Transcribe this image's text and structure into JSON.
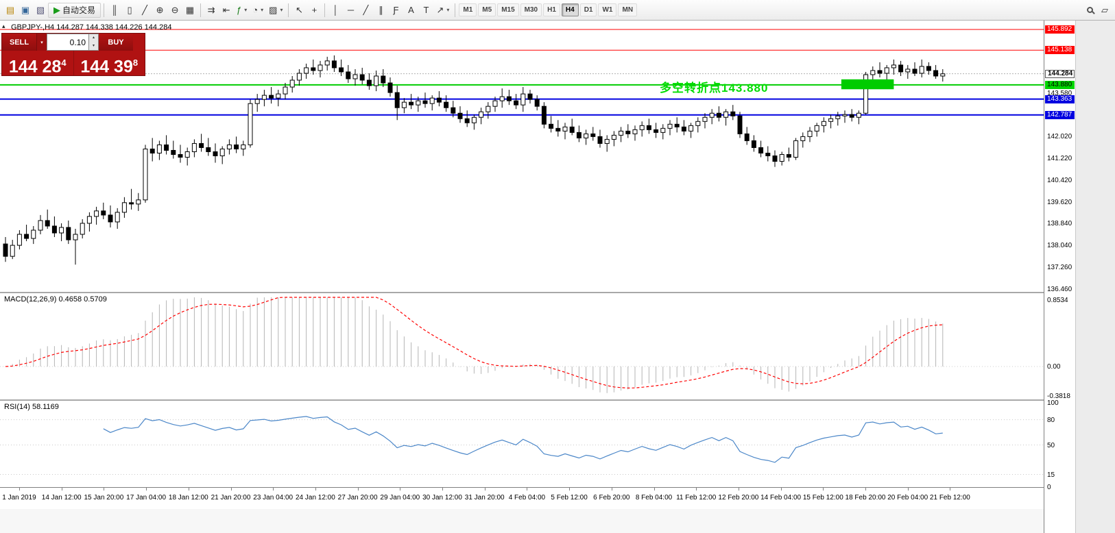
{
  "toolbar": {
    "dropdown_glyph": "▾",
    "groups": [
      {
        "items": [
          {
            "name": "new-order-icon",
            "glyph": "▤",
            "color": "#b8860b"
          },
          {
            "name": "chart-window-icon",
            "glyph": "▣",
            "color": "#336699"
          },
          {
            "name": "profiles-icon",
            "glyph": "▧",
            "color": "#555577"
          },
          {
            "name": "autotrading-button",
            "glyph": "▶",
            "color": "#1a9c1a",
            "label": "自动交易",
            "wide": true
          }
        ]
      },
      {
        "items": [
          {
            "name": "bar-chart-mode-icon",
            "glyph": "║"
          },
          {
            "name": "candlestick-mode-icon",
            "glyph": "▯"
          },
          {
            "name": "line-chart-mode-icon",
            "glyph": "╱"
          },
          {
            "name": "zoom-in-icon",
            "glyph": "⊕"
          },
          {
            "name": "zoom-out-icon",
            "glyph": "⊖"
          },
          {
            "name": "tile-windows-icon",
            "glyph": "▦"
          }
        ]
      },
      {
        "items": [
          {
            "name": "auto-scroll-icon",
            "glyph": "⇉"
          },
          {
            "name": "chart-shift-icon",
            "glyph": "⇤"
          },
          {
            "name": "indicators-icon",
            "glyph": "ƒ",
            "color": "#1a7c1a",
            "dropdown": true
          },
          {
            "name": "periods-icon",
            "glyph": "◔",
            "dropdown": true
          },
          {
            "name": "templates-icon",
            "glyph": "▨",
            "dropdown": true
          }
        ]
      },
      {
        "items": [
          {
            "name": "cursor-icon",
            "glyph": "↖"
          },
          {
            "name": "crosshair-icon",
            "glyph": "+"
          }
        ]
      },
      {
        "items": [
          {
            "name": "vertical-line-icon",
            "glyph": "│"
          },
          {
            "name": "horizontal-line-icon",
            "glyph": "─"
          },
          {
            "name": "trendline-icon",
            "glyph": "╱"
          },
          {
            "name": "channel-icon",
            "glyph": "∥"
          },
          {
            "name": "fibonacci-icon",
            "glyph": "Ƒ"
          },
          {
            "name": "text-icon",
            "glyph": "A"
          },
          {
            "name": "text-label-icon",
            "glyph": "T"
          },
          {
            "name": "arrow-tools-icon",
            "glyph": "↗",
            "dropdown": true
          }
        ]
      }
    ],
    "timeframes": [
      {
        "label": "M1"
      },
      {
        "label": "M5"
      },
      {
        "label": "M15"
      },
      {
        "label": "M30"
      },
      {
        "label": "H1"
      },
      {
        "label": "H4",
        "active": true
      },
      {
        "label": "D1"
      },
      {
        "label": "W1"
      },
      {
        "label": "MN"
      }
    ],
    "right_items": [
      {
        "name": "search-icon",
        "shape": "magnifier"
      },
      {
        "name": "new-window-icon",
        "glyph": "▱"
      }
    ]
  },
  "chart": {
    "symbol_line": "GBPJPY-,H4 144.287 144.338 144.226 144.284",
    "collapse_arrow_glyph": "▴",
    "annotation_text": "多空转折点143.880",
    "annotation_color": "#00DD00",
    "hlines": [
      {
        "price": 145.892,
        "color": "#ff0000",
        "width": 1
      },
      {
        "price": 145.138,
        "color": "#ff0000",
        "width": 1
      },
      {
        "price": 143.88,
        "color": "#00cc00",
        "width": 2
      },
      {
        "price": 143.363,
        "color": "#0000e0",
        "width": 2
      },
      {
        "price": 142.787,
        "color": "#0000e0",
        "width": 2
      }
    ],
    "current_price": {
      "value": 144.284,
      "label": "144.284"
    },
    "highlight_rect": {
      "from_index": 119.5,
      "to_index": 127,
      "price_top": 144.08,
      "price_bottom": 143.72,
      "color": "#00cc00"
    }
  },
  "price_axis": {
    "tags": [
      {
        "label": "145.892",
        "value": 145.892,
        "type": "red"
      },
      {
        "label": "145.138",
        "value": 145.138,
        "type": "red"
      },
      {
        "label": "144.284",
        "value": 144.284,
        "type": "current"
      },
      {
        "label": "143.880",
        "value": 143.88,
        "type": "green"
      },
      {
        "label": "143.363",
        "value": 143.363,
        "type": "blue"
      },
      {
        "label": "142.787",
        "value": 142.787,
        "type": "blue"
      }
    ],
    "labels": [
      {
        "label": "143.580",
        "value": 143.58
      },
      {
        "label": "142.020",
        "value": 142.02
      },
      {
        "label": "141.220",
        "value": 141.22
      },
      {
        "label": "140.420",
        "value": 140.42
      },
      {
        "label": "139.620",
        "value": 139.62
      },
      {
        "label": "138.840",
        "value": 138.84
      },
      {
        "label": "138.040",
        "value": 138.04
      },
      {
        "label": "137.260",
        "value": 137.26
      },
      {
        "label": "136.460",
        "value": 136.46
      }
    ]
  },
  "macd": {
    "label": "MACD(12,26,9) 0.4658 0.5709",
    "params": [
      12,
      26,
      9
    ],
    "values": [
      "0.4658",
      "0.5709"
    ],
    "ticks": [
      {
        "label": "0.8534",
        "value": 0.8534
      },
      {
        "label": "0.00",
        "value": 0
      },
      {
        "label": "-0.3818",
        "value": -0.3818
      }
    ]
  },
  "rsi": {
    "label": "RSI(14) 58.1169",
    "params": [
      14
    ],
    "value": "58.1169",
    "levels": [
      80,
      50,
      15
    ],
    "ticks": [
      {
        "label": "100",
        "value": 100
      },
      {
        "label": "80",
        "value": 80
      },
      {
        "label": "50",
        "value": 50
      },
      {
        "label": "15",
        "value": 15
      },
      {
        "label": "0",
        "value": 0
      }
    ]
  },
  "trade_panel": {
    "sell_label": "SELL",
    "buy_label": "BUY",
    "volume": "0.10",
    "dropdown_glyph": "▾",
    "spin_up": "▴",
    "spin_down": "▾",
    "sell_price": {
      "big": "144 28",
      "sup": "4"
    },
    "buy_price": {
      "big": "144 39",
      "sup": "8"
    }
  },
  "chart_data": {
    "type": "candlestick",
    "symbol": "GBPJPY-",
    "timeframe": "H4",
    "y_range": [
      136.31,
      146.22
    ],
    "x_labels": [
      "1 Jan 2019",
      "14 Jan 12:00",
      "15 Jan 20:00",
      "17 Jan 04:00",
      "18 Jan 12:00",
      "21 Jan 20:00",
      "23 Jan 04:00",
      "24 Jan 12:00",
      "27 Jan 20:00",
      "29 Jan 04:00",
      "30 Jan 12:00",
      "31 Jan 20:00",
      "4 Feb 04:00",
      "5 Feb 12:00",
      "6 Feb 20:00",
      "8 Feb 04:00",
      "11 Feb 12:00",
      "12 Feb 20:00",
      "14 Feb 04:00",
      "15 Feb 12:00",
      "18 Feb 20:00",
      "20 Feb 04:00",
      "21 Feb 12:00"
    ],
    "ohlc": [
      [
        138.1,
        138.35,
        137.45,
        137.65
      ],
      [
        137.65,
        138.25,
        137.55,
        138.05
      ],
      [
        138.05,
        138.6,
        137.9,
        138.45
      ],
      [
        138.45,
        138.8,
        138.2,
        138.3
      ],
      [
        138.3,
        138.75,
        138.1,
        138.6
      ],
      [
        138.6,
        139.15,
        138.45,
        138.95
      ],
      [
        138.95,
        139.35,
        138.65,
        138.75
      ],
      [
        138.75,
        139.1,
        138.35,
        138.5
      ],
      [
        138.5,
        138.85,
        138.2,
        138.7
      ],
      [
        138.7,
        138.95,
        138.1,
        138.25
      ],
      [
        138.25,
        138.65,
        137.35,
        138.45
      ],
      [
        138.45,
        139.0,
        138.3,
        138.85
      ],
      [
        138.85,
        139.25,
        138.55,
        139.1
      ],
      [
        139.1,
        139.45,
        138.8,
        139.3
      ],
      [
        139.3,
        139.6,
        139.0,
        139.15
      ],
      [
        139.15,
        139.5,
        138.7,
        138.9
      ],
      [
        138.9,
        139.4,
        138.65,
        139.25
      ],
      [
        139.25,
        139.8,
        139.05,
        139.6
      ],
      [
        139.6,
        140.1,
        139.35,
        139.55
      ],
      [
        139.55,
        139.95,
        139.3,
        139.7
      ],
      [
        139.7,
        141.7,
        139.6,
        141.55
      ],
      [
        141.55,
        141.95,
        141.1,
        141.4
      ],
      [
        141.4,
        141.85,
        141.15,
        141.7
      ],
      [
        141.7,
        142.05,
        141.35,
        141.5
      ],
      [
        141.5,
        141.85,
        141.2,
        141.35
      ],
      [
        141.35,
        141.7,
        141.05,
        141.25
      ],
      [
        141.25,
        141.6,
        140.95,
        141.45
      ],
      [
        141.45,
        141.9,
        141.25,
        141.75
      ],
      [
        141.75,
        142.1,
        141.45,
        141.6
      ],
      [
        141.6,
        141.95,
        141.3,
        141.45
      ],
      [
        141.45,
        141.75,
        141.05,
        141.3
      ],
      [
        141.3,
        141.65,
        141.0,
        141.55
      ],
      [
        141.55,
        141.9,
        141.35,
        141.7
      ],
      [
        141.7,
        142.0,
        141.4,
        141.55
      ],
      [
        141.55,
        141.85,
        141.3,
        141.7
      ],
      [
        141.7,
        143.35,
        141.6,
        143.2
      ],
      [
        143.2,
        143.55,
        142.9,
        143.35
      ],
      [
        143.35,
        143.7,
        143.1,
        143.5
      ],
      [
        143.5,
        143.8,
        143.2,
        143.4
      ],
      [
        143.4,
        143.7,
        143.1,
        143.55
      ],
      [
        143.55,
        143.95,
        143.35,
        143.8
      ],
      [
        143.8,
        144.2,
        143.6,
        144.05
      ],
      [
        144.05,
        144.45,
        143.85,
        144.3
      ],
      [
        144.3,
        144.65,
        144.1,
        144.5
      ],
      [
        144.5,
        144.8,
        144.25,
        144.4
      ],
      [
        144.4,
        144.75,
        144.15,
        144.6
      ],
      [
        144.6,
        144.9,
        144.4,
        144.75
      ],
      [
        144.75,
        144.95,
        144.35,
        144.5
      ],
      [
        144.5,
        144.8,
        144.2,
        144.35
      ],
      [
        144.35,
        144.6,
        143.95,
        144.1
      ],
      [
        144.1,
        144.45,
        143.85,
        144.25
      ],
      [
        144.25,
        144.5,
        143.9,
        144.05
      ],
      [
        144.05,
        144.3,
        143.7,
        143.85
      ],
      [
        143.85,
        144.4,
        143.65,
        144.2
      ],
      [
        144.2,
        144.45,
        143.8,
        143.95
      ],
      [
        143.95,
        144.15,
        143.45,
        143.6
      ],
      [
        143.6,
        143.85,
        142.6,
        143.05
      ],
      [
        143.05,
        143.4,
        142.85,
        143.25
      ],
      [
        143.25,
        143.55,
        143.0,
        143.15
      ],
      [
        143.15,
        143.45,
        142.9,
        143.3
      ],
      [
        143.3,
        143.6,
        143.05,
        143.2
      ],
      [
        143.2,
        143.5,
        142.95,
        143.4
      ],
      [
        143.4,
        143.65,
        143.1,
        143.25
      ],
      [
        143.25,
        143.5,
        142.9,
        143.05
      ],
      [
        143.05,
        143.3,
        142.7,
        142.85
      ],
      [
        142.85,
        143.1,
        142.5,
        142.65
      ],
      [
        142.65,
        142.95,
        142.35,
        142.5
      ],
      [
        142.5,
        142.8,
        142.25,
        142.7
      ],
      [
        142.7,
        143.05,
        142.45,
        142.9
      ],
      [
        142.9,
        143.25,
        142.65,
        143.1
      ],
      [
        143.1,
        143.45,
        142.9,
        143.3
      ],
      [
        143.3,
        143.75,
        143.05,
        143.45
      ],
      [
        143.45,
        143.7,
        143.15,
        143.3
      ],
      [
        143.3,
        143.55,
        143.0,
        143.15
      ],
      [
        143.15,
        143.8,
        142.9,
        143.55
      ],
      [
        143.55,
        143.7,
        143.2,
        143.35
      ],
      [
        143.35,
        143.5,
        142.95,
        143.1
      ],
      [
        143.1,
        143.25,
        142.3,
        142.45
      ],
      [
        142.45,
        142.75,
        142.15,
        142.3
      ],
      [
        142.3,
        142.6,
        142.0,
        142.2
      ],
      [
        142.2,
        142.5,
        141.9,
        142.35
      ],
      [
        142.35,
        142.65,
        142.05,
        142.15
      ],
      [
        142.15,
        142.4,
        141.8,
        141.95
      ],
      [
        141.95,
        142.25,
        141.7,
        142.1
      ],
      [
        142.1,
        142.35,
        141.85,
        142.0
      ],
      [
        142.0,
        142.25,
        141.6,
        141.75
      ],
      [
        141.75,
        142.05,
        141.45,
        141.9
      ],
      [
        141.9,
        142.2,
        141.65,
        142.05
      ],
      [
        142.05,
        142.35,
        141.8,
        142.2
      ],
      [
        142.2,
        142.45,
        141.95,
        142.1
      ],
      [
        142.1,
        142.4,
        141.85,
        142.25
      ],
      [
        142.25,
        142.55,
        142.0,
        142.4
      ],
      [
        142.4,
        142.65,
        142.1,
        142.25
      ],
      [
        142.25,
        142.5,
        141.95,
        142.15
      ],
      [
        142.15,
        142.45,
        141.9,
        142.3
      ],
      [
        142.3,
        142.6,
        142.05,
        142.45
      ],
      [
        142.45,
        142.7,
        142.15,
        142.35
      ],
      [
        142.35,
        142.6,
        142.05,
        142.2
      ],
      [
        142.2,
        142.5,
        141.95,
        142.4
      ],
      [
        142.4,
        142.7,
        142.15,
        142.55
      ],
      [
        142.55,
        142.85,
        142.3,
        142.7
      ],
      [
        142.7,
        143.0,
        142.45,
        142.85
      ],
      [
        142.85,
        143.1,
        142.55,
        142.7
      ],
      [
        142.7,
        143.0,
        142.4,
        142.9
      ],
      [
        142.9,
        143.15,
        142.6,
        142.75
      ],
      [
        142.75,
        142.9,
        141.95,
        142.1
      ],
      [
        142.1,
        142.35,
        141.7,
        141.85
      ],
      [
        141.85,
        142.05,
        141.45,
        141.6
      ],
      [
        141.6,
        141.85,
        141.25,
        141.4
      ],
      [
        141.4,
        141.65,
        141.1,
        141.3
      ],
      [
        141.3,
        141.5,
        140.9,
        141.1
      ],
      [
        141.1,
        141.45,
        140.95,
        141.35
      ],
      [
        141.35,
        141.6,
        141.1,
        141.25
      ],
      [
        141.25,
        141.95,
        141.15,
        141.85
      ],
      [
        141.85,
        142.15,
        141.6,
        142.0
      ],
      [
        142.0,
        142.35,
        141.8,
        142.2
      ],
      [
        142.2,
        142.5,
        142.0,
        142.4
      ],
      [
        142.4,
        142.7,
        142.15,
        142.55
      ],
      [
        142.55,
        142.8,
        142.3,
        142.65
      ],
      [
        142.65,
        142.9,
        142.4,
        142.75
      ],
      [
        142.75,
        142.95,
        142.5,
        142.8
      ],
      [
        142.8,
        143.0,
        142.55,
        142.7
      ],
      [
        142.7,
        142.95,
        142.45,
        142.85
      ],
      [
        142.85,
        144.35,
        142.8,
        144.25
      ],
      [
        144.25,
        144.55,
        144.0,
        144.4
      ],
      [
        144.4,
        144.7,
        144.15,
        144.3
      ],
      [
        144.3,
        144.6,
        144.05,
        144.5
      ],
      [
        144.5,
        144.8,
        144.25,
        144.6
      ],
      [
        144.6,
        144.75,
        144.2,
        144.35
      ],
      [
        144.35,
        144.6,
        144.1,
        144.45
      ],
      [
        144.45,
        144.7,
        144.2,
        144.3
      ],
      [
        144.3,
        144.8,
        144.15,
        144.55
      ],
      [
        144.55,
        144.7,
        144.25,
        144.4
      ],
      [
        144.4,
        144.6,
        144.1,
        144.2
      ],
      [
        144.2,
        144.45,
        144.0,
        144.28
      ]
    ],
    "indicators": [
      {
        "type": "MACD",
        "params": [
          12,
          26,
          9
        ],
        "current_values": [
          0.4658,
          0.5709
        ]
      },
      {
        "type": "RSI",
        "params": [
          14
        ],
        "current_value": 58.1169
      }
    ]
  }
}
